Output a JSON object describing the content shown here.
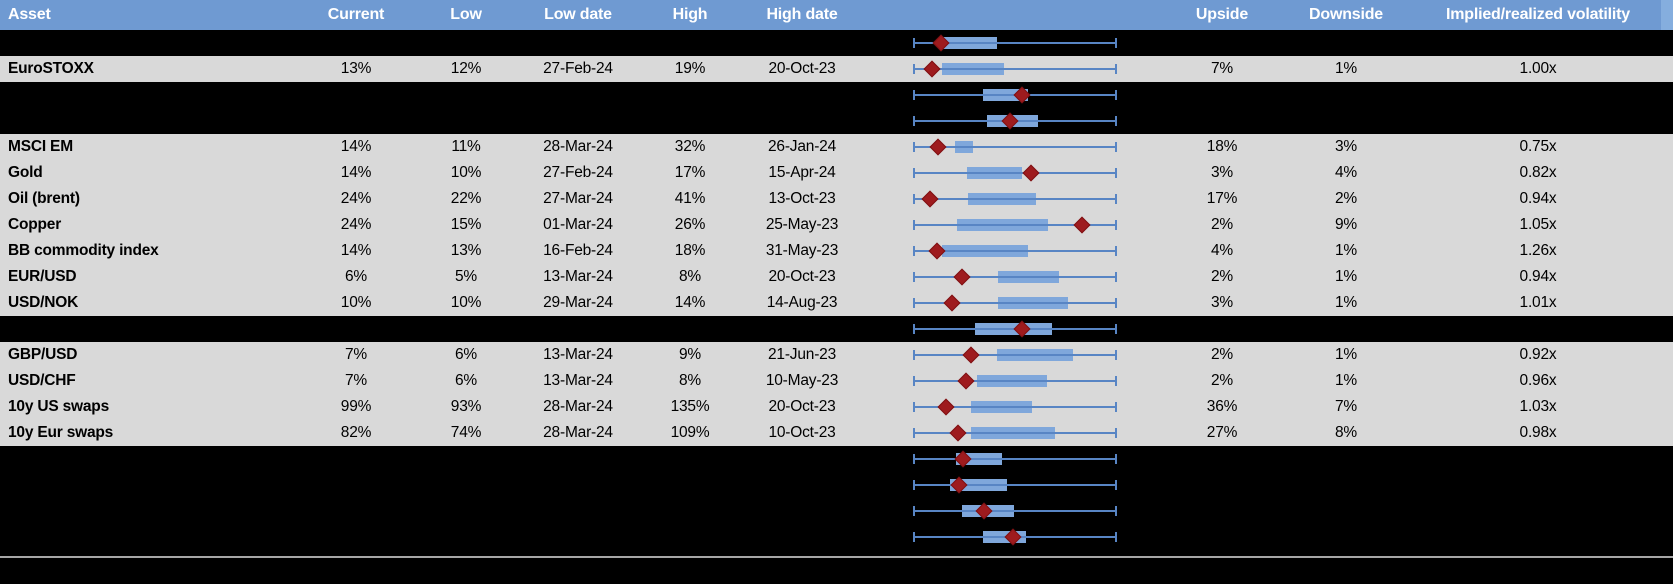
{
  "colors": {
    "header_bg": "#6F9AD2",
    "header_strip": "#85AEDE",
    "header_text": "#FFFFFF",
    "row_bg": "#D9D9D9",
    "chart_row_bg": "#000000",
    "body_text": "#000000",
    "whisker": "#5885C4",
    "box_fill": "#7FA7DB",
    "diamond_fill": "#9E1B1E",
    "diamond_border": "#7E1012",
    "divider": "#A6A6A6"
  },
  "columns": [
    {
      "key": "asset",
      "label": "Asset"
    },
    {
      "key": "current",
      "label": "Current"
    },
    {
      "key": "low",
      "label": "Low"
    },
    {
      "key": "low_date",
      "label": "Low date"
    },
    {
      "key": "high",
      "label": "High"
    },
    {
      "key": "high_date",
      "label": "High date"
    },
    {
      "key": "upside",
      "label": "Upside"
    },
    {
      "key": "downside",
      "label": "Downside"
    },
    {
      "key": "vol",
      "label": "Implied/realized volatility"
    }
  ],
  "rows": [
    {
      "type": "chart"
    },
    {
      "type": "data",
      "asset": "EuroSTOXX",
      "current": "13%",
      "low": "12%",
      "low_date": "27-Feb-24",
      "high": "19%",
      "high_date": "20-Oct-23",
      "upside": "7%",
      "downside": "1%",
      "vol": "1.00x"
    },
    {
      "type": "chart"
    },
    {
      "type": "chart"
    },
    {
      "type": "data",
      "asset": "MSCI EM",
      "current": "14%",
      "low": "11%",
      "low_date": "28-Mar-24",
      "high": "32%",
      "high_date": "26-Jan-24",
      "upside": "18%",
      "downside": "3%",
      "vol": "0.75x"
    },
    {
      "type": "data",
      "asset": "Gold",
      "current": "14%",
      "low": "10%",
      "low_date": "27-Feb-24",
      "high": "17%",
      "high_date": "15-Apr-24",
      "upside": "3%",
      "downside": "4%",
      "vol": "0.82x"
    },
    {
      "type": "data",
      "asset": "Oil (brent)",
      "current": "24%",
      "low": "22%",
      "low_date": "27-Mar-24",
      "high": "41%",
      "high_date": "13-Oct-23",
      "upside": "17%",
      "downside": "2%",
      "vol": "0.94x"
    },
    {
      "type": "data",
      "asset": "Copper",
      "current": "24%",
      "low": "15%",
      "low_date": "01-Mar-24",
      "high": "26%",
      "high_date": "25-May-23",
      "upside": "2%",
      "downside": "9%",
      "vol": "1.05x"
    },
    {
      "type": "data",
      "asset": "BB commodity index",
      "current": "14%",
      "low": "13%",
      "low_date": "16-Feb-24",
      "high": "18%",
      "high_date": "31-May-23",
      "upside": "4%",
      "downside": "1%",
      "vol": "1.26x"
    },
    {
      "type": "data",
      "asset": "EUR/USD",
      "current": "6%",
      "low": "5%",
      "low_date": "13-Mar-24",
      "high": "8%",
      "high_date": "20-Oct-23",
      "upside": "2%",
      "downside": "1%",
      "vol": "0.94x"
    },
    {
      "type": "data",
      "asset": "USD/NOK",
      "current": "10%",
      "low": "10%",
      "low_date": "29-Mar-24",
      "high": "14%",
      "high_date": "14-Aug-23",
      "upside": "3%",
      "downside": "1%",
      "vol": "1.01x"
    },
    {
      "type": "chart"
    },
    {
      "type": "data",
      "asset": "GBP/USD",
      "current": "7%",
      "low": "6%",
      "low_date": "13-Mar-24",
      "high": "9%",
      "high_date": "21-Jun-23",
      "upside": "2%",
      "downside": "1%",
      "vol": "0.92x"
    },
    {
      "type": "data",
      "asset": "USD/CHF",
      "current": "7%",
      "low": "6%",
      "low_date": "13-Mar-24",
      "high": "8%",
      "high_date": "10-May-23",
      "upside": "2%",
      "downside": "1%",
      "vol": "0.96x"
    },
    {
      "type": "data",
      "asset": "10y US swaps",
      "current": "99%",
      "low": "93%",
      "low_date": "28-Mar-24",
      "high": "135%",
      "high_date": "20-Oct-23",
      "upside": "36%",
      "downside": "7%",
      "vol": "1.03x"
    },
    {
      "type": "data",
      "asset": "10y Eur swaps",
      "current": "82%",
      "low": "74%",
      "low_date": "28-Mar-24",
      "high": "109%",
      "high_date": "10-Oct-23",
      "upside": "27%",
      "downside": "8%",
      "vol": "0.98x"
    },
    {
      "type": "chart"
    },
    {
      "type": "chart"
    },
    {
      "type": "chart"
    },
    {
      "type": "chart"
    }
  ],
  "chart_data": {
    "type": "boxplot",
    "orientation": "horizontal",
    "axis": "none shown; positions normalized 0-1 across each row's whisker span",
    "marker_shape": "red diamond (current level)",
    "series": [
      {
        "label": "",
        "whisker": [
          0,
          1
        ],
        "box": [
          0.142,
          0.412
        ],
        "marker": 0.137
      },
      {
        "label": "EuroSTOXX",
        "whisker": [
          0,
          1
        ],
        "box": [
          0.142,
          0.446
        ],
        "marker": 0.093
      },
      {
        "label": "",
        "whisker": [
          0,
          1
        ],
        "box": [
          0.343,
          0.564
        ],
        "marker": 0.534
      },
      {
        "label": "",
        "whisker": [
          0,
          1
        ],
        "box": [
          0.363,
          0.613
        ],
        "marker": 0.475
      },
      {
        "label": "MSCI EM",
        "whisker": [
          0,
          1
        ],
        "box": [
          0.206,
          0.294
        ],
        "marker": 0.123
      },
      {
        "label": "Gold",
        "whisker": [
          0,
          1
        ],
        "box": [
          0.265,
          0.534
        ],
        "marker": 0.578
      },
      {
        "label": "Oil (brent)",
        "whisker": [
          0,
          1
        ],
        "box": [
          0.27,
          0.603
        ],
        "marker": 0.083
      },
      {
        "label": "Copper",
        "whisker": [
          0,
          1
        ],
        "box": [
          0.216,
          0.662
        ],
        "marker": 0.828
      },
      {
        "label": "BB commodity index",
        "whisker": [
          0,
          1
        ],
        "box": [
          0.142,
          0.564
        ],
        "marker": 0.118
      },
      {
        "label": "EUR/USD",
        "whisker": [
          0,
          1
        ],
        "box": [
          0.417,
          0.716
        ],
        "marker": 0.24
      },
      {
        "label": "USD/NOK",
        "whisker": [
          0,
          1
        ],
        "box": [
          0.417,
          0.76
        ],
        "marker": 0.191
      },
      {
        "label": "",
        "whisker": [
          0,
          1
        ],
        "box": [
          0.304,
          0.681
        ],
        "marker": 0.534
      },
      {
        "label": "GBP/USD",
        "whisker": [
          0,
          1
        ],
        "box": [
          0.412,
          0.784
        ],
        "marker": 0.284
      },
      {
        "label": "USD/CHF",
        "whisker": [
          0,
          1
        ],
        "box": [
          0.314,
          0.657
        ],
        "marker": 0.26
      },
      {
        "label": "10y US swaps",
        "whisker": [
          0,
          1
        ],
        "box": [
          0.284,
          0.583
        ],
        "marker": 0.162
      },
      {
        "label": "10y Eur swaps",
        "whisker": [
          0,
          1
        ],
        "box": [
          0.284,
          0.696
        ],
        "marker": 0.221
      },
      {
        "label": "",
        "whisker": [
          0,
          1
        ],
        "box": [
          0.211,
          0.436
        ],
        "marker": 0.245
      },
      {
        "label": "",
        "whisker": [
          0,
          1
        ],
        "box": [
          0.181,
          0.461
        ],
        "marker": 0.225
      },
      {
        "label": "",
        "whisker": [
          0,
          1
        ],
        "box": [
          0.24,
          0.495
        ],
        "marker": 0.348
      },
      {
        "label": "",
        "whisker": [
          0,
          1
        ],
        "box": [
          0.343,
          0.554
        ],
        "marker": 0.49
      }
    ]
  }
}
